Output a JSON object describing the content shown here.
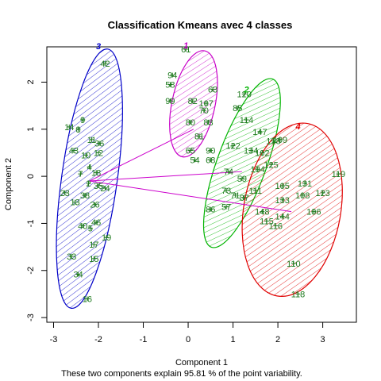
{
  "chart_data": {
    "type": "scatter",
    "title": "Classification Kmeans avec 4 classes",
    "xlabel": "Component 1",
    "ylabel": "Component 2",
    "subtitle": "These two components explain 95.81 % of the point variability.",
    "xlim": [
      -3.15,
      3.75
    ],
    "ylim": [
      -3.1,
      2.75
    ],
    "xticks": [
      -3,
      -2,
      -1,
      0,
      1,
      2,
      3
    ],
    "yticks": [
      -3,
      -2,
      -1,
      0,
      1,
      2
    ],
    "grid": false,
    "colors": {
      "points": "#1e7a1e",
      "cluster1": "#0000c8",
      "cluster2": "#c800c8",
      "cluster3": "#00b400",
      "cluster4": "#e00000",
      "links": "#cc00cc"
    },
    "clusters": [
      {
        "id": "3",
        "color": "#0000c8",
        "center": [
          -2.2,
          -0.05
        ],
        "rx": 0.62,
        "ry": 2.78,
        "angle": 8,
        "label_pos": [
          -2.0,
          2.7
        ]
      },
      {
        "id": "1",
        "color": "#c800c8",
        "center": [
          0.12,
          1.54
        ],
        "rx": 0.48,
        "ry": 1.15,
        "angle": 12,
        "label_pos": [
          -0.05,
          2.72
        ]
      },
      {
        "id": "2",
        "color": "#00b400",
        "center": [
          1.2,
          0.28
        ],
        "rx": 0.55,
        "ry": 1.9,
        "angle": 20,
        "label_pos": [
          1.3,
          1.78
        ]
      },
      {
        "id": "4",
        "color": "#e00000",
        "center": [
          2.32,
          -0.71
        ],
        "rx": 1.08,
        "ry": 1.86,
        "angle": 10,
        "label_pos": [
          2.45,
          1.0
        ]
      }
    ],
    "links": [
      {
        "from": [
          -2.2,
          -0.1
        ],
        "to": [
          0.12,
          1.0
        ]
      },
      {
        "from": [
          -2.2,
          -0.1
        ],
        "to": [
          1.2,
          0.1
        ]
      },
      {
        "from": [
          -2.2,
          -0.1
        ],
        "to": [
          2.3,
          -0.75
        ]
      }
    ],
    "points": [
      {
        "label": "42",
        "x": -1.85,
        "y": 2.4
      },
      {
        "label": "9",
        "x": -2.35,
        "y": 1.2
      },
      {
        "label": "14",
        "x": -2.65,
        "y": 1.05
      },
      {
        "label": "8",
        "x": -2.45,
        "y": 1.0
      },
      {
        "label": "11",
        "x": -2.15,
        "y": 0.78
      },
      {
        "label": "36",
        "x": -1.98,
        "y": 0.7
      },
      {
        "label": "43",
        "x": -2.55,
        "y": 0.55
      },
      {
        "label": "10",
        "x": -2.28,
        "y": 0.45
      },
      {
        "label": "12",
        "x": -2.0,
        "y": 0.5
      },
      {
        "label": "4",
        "x": -2.2,
        "y": 0.2
      },
      {
        "label": "7",
        "x": -2.4,
        "y": 0.05
      },
      {
        "label": "18",
        "x": -2.05,
        "y": 0.08
      },
      {
        "label": "2",
        "x": -2.22,
        "y": -0.15
      },
      {
        "label": "35",
        "x": -2.0,
        "y": -0.2
      },
      {
        "label": "24",
        "x": -1.85,
        "y": -0.25
      },
      {
        "label": "23",
        "x": -2.75,
        "y": -0.35
      },
      {
        "label": "38",
        "x": -2.3,
        "y": -0.4
      },
      {
        "label": "13",
        "x": -2.52,
        "y": -0.55
      },
      {
        "label": "26",
        "x": -2.08,
        "y": -0.6
      },
      {
        "label": "40",
        "x": -2.35,
        "y": -1.05
      },
      {
        "label": "5",
        "x": -2.18,
        "y": -1.1
      },
      {
        "label": "46",
        "x": -2.05,
        "y": -0.98
      },
      {
        "label": "19",
        "x": -1.82,
        "y": -1.3
      },
      {
        "label": "17",
        "x": -2.1,
        "y": -1.45
      },
      {
        "label": "33",
        "x": -2.6,
        "y": -1.7
      },
      {
        "label": "15",
        "x": -2.1,
        "y": -1.75
      },
      {
        "label": "34",
        "x": -2.45,
        "y": -2.08
      },
      {
        "label": "16",
        "x": -2.25,
        "y": -2.6
      },
      {
        "label": "61",
        "x": -0.05,
        "y": 2.7
      },
      {
        "label": "94",
        "x": -0.35,
        "y": 2.15
      },
      {
        "label": "58",
        "x": -0.4,
        "y": 1.95
      },
      {
        "label": "63",
        "x": 0.55,
        "y": 1.85
      },
      {
        "label": "99",
        "x": -0.4,
        "y": 1.6
      },
      {
        "label": "82",
        "x": 0.1,
        "y": 1.6
      },
      {
        "label": "107",
        "x": 0.4,
        "y": 1.55
      },
      {
        "label": "70",
        "x": 0.35,
        "y": 1.4
      },
      {
        "label": "80",
        "x": 0.05,
        "y": 1.15
      },
      {
        "label": "83",
        "x": 0.45,
        "y": 1.15
      },
      {
        "label": "81",
        "x": 0.25,
        "y": 0.85
      },
      {
        "label": "65",
        "x": 0.05,
        "y": 0.55
      },
      {
        "label": "90",
        "x": 0.5,
        "y": 0.55
      },
      {
        "label": "54",
        "x": 0.15,
        "y": 0.35
      },
      {
        "label": "68",
        "x": 0.5,
        "y": 0.35
      },
      {
        "label": "120",
        "x": 1.25,
        "y": 1.75
      },
      {
        "label": "85",
        "x": 1.1,
        "y": 1.45
      },
      {
        "label": "114",
        "x": 1.3,
        "y": 1.2
      },
      {
        "label": "147",
        "x": 1.6,
        "y": 0.95
      },
      {
        "label": "122",
        "x": 1.0,
        "y": 0.65
      },
      {
        "label": "134",
        "x": 1.4,
        "y": 0.55
      },
      {
        "label": "102",
        "x": 1.65,
        "y": 0.5
      },
      {
        "label": "128",
        "x": 1.9,
        "y": 0.75
      },
      {
        "label": "109",
        "x": 2.05,
        "y": 0.78
      },
      {
        "label": "104",
        "x": 1.55,
        "y": 0.15
      },
      {
        "label": "125",
        "x": 1.85,
        "y": 0.25
      },
      {
        "label": "74",
        "x": 0.9,
        "y": 0.1
      },
      {
        "label": "59",
        "x": 1.2,
        "y": -0.05
      },
      {
        "label": "73",
        "x": 0.85,
        "y": -0.3
      },
      {
        "label": "71",
        "x": 1.05,
        "y": -0.4
      },
      {
        "label": "87",
        "x": 1.25,
        "y": -0.45
      },
      {
        "label": "86",
        "x": 0.5,
        "y": -0.7
      },
      {
        "label": "57",
        "x": 0.85,
        "y": -0.65
      },
      {
        "label": "111",
        "x": 1.5,
        "y": -0.3
      },
      {
        "label": "105",
        "x": 2.1,
        "y": -0.2
      },
      {
        "label": "131",
        "x": 2.6,
        "y": -0.15
      },
      {
        "label": "119",
        "x": 3.35,
        "y": 0.05
      },
      {
        "label": "108",
        "x": 2.55,
        "y": -0.4
      },
      {
        "label": "123",
        "x": 3.0,
        "y": -0.35
      },
      {
        "label": "133",
        "x": 2.1,
        "y": -0.5
      },
      {
        "label": "148",
        "x": 1.65,
        "y": -0.75
      },
      {
        "label": "115",
        "x": 1.75,
        "y": -0.95
      },
      {
        "label": "144",
        "x": 2.1,
        "y": -0.85
      },
      {
        "label": "116",
        "x": 1.95,
        "y": -1.05
      },
      {
        "label": "106",
        "x": 2.8,
        "y": -0.75
      },
      {
        "label": "110",
        "x": 2.35,
        "y": -1.85
      },
      {
        "label": "118",
        "x": 2.45,
        "y": -2.5
      }
    ]
  }
}
